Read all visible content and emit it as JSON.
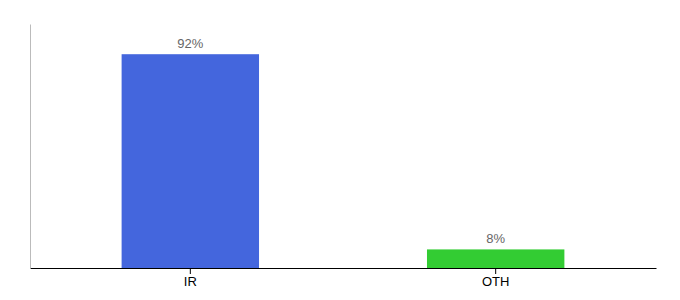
{
  "chart_data": {
    "type": "bar",
    "categories": [
      "IR",
      "OTH"
    ],
    "values": [
      92,
      8
    ],
    "value_labels": [
      "92%",
      "8%"
    ],
    "colors": [
      "#4466dd",
      "#33cc33"
    ],
    "ylim": [
      0,
      105
    ],
    "data_labels": true,
    "tick_labels": "x"
  }
}
